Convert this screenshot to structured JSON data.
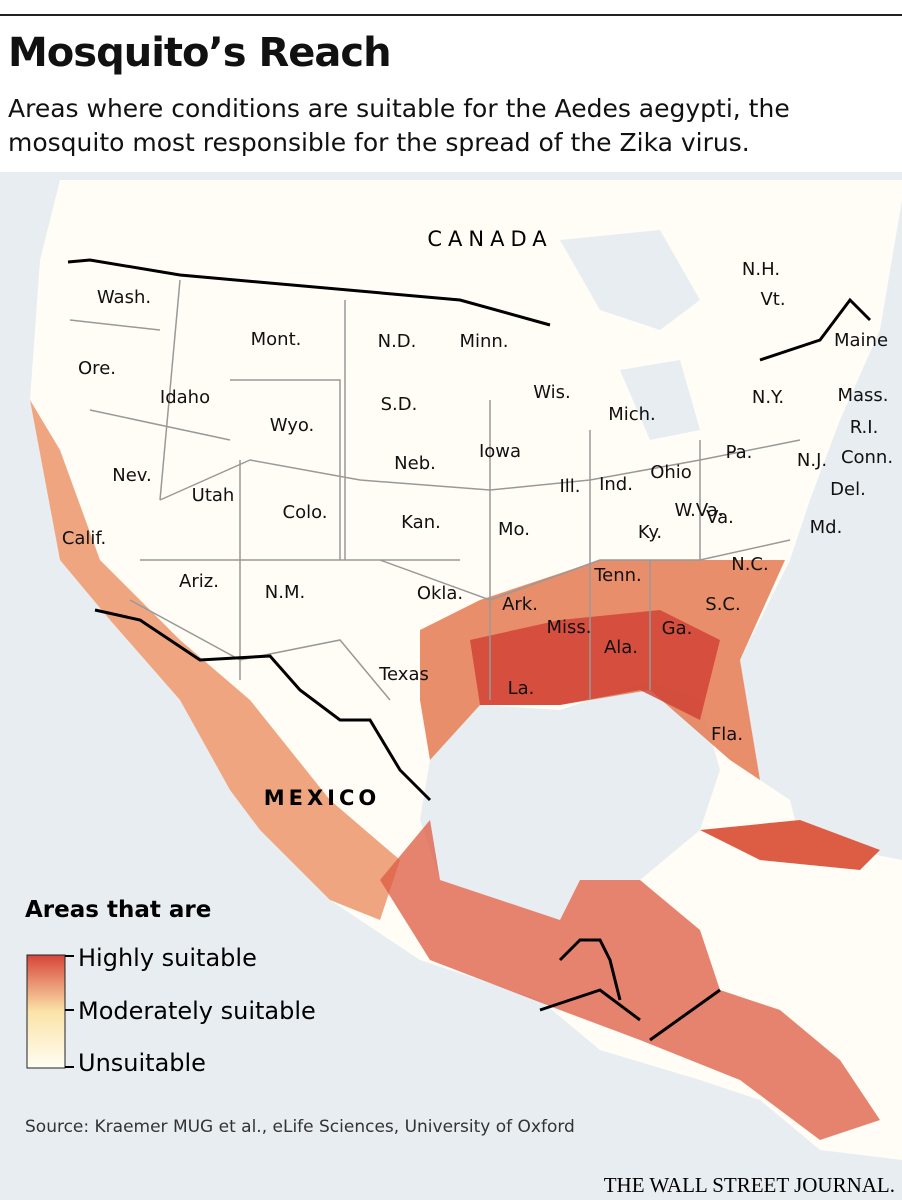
{
  "header": {
    "title": "Mosquito’s Reach",
    "subtitle_lines": [
      "Areas where conditions are suitable for the Aedes aegypti, the",
      "mosquito most responsible for the spread of the Zika virus."
    ]
  },
  "map": {
    "countries": [
      "CANADA",
      "MEXICO"
    ],
    "states": [
      "Wash.",
      "Ore.",
      "Calif.",
      "Idaho",
      "Nev.",
      "Mont.",
      "Wyo.",
      "Utah",
      "Ariz.",
      "Colo.",
      "N.M.",
      "N.D.",
      "S.D.",
      "Neb.",
      "Kan.",
      "Okla.",
      "Texas",
      "Minn.",
      "Iowa",
      "Mo.",
      "Ark.",
      "La.",
      "Wis.",
      "Ill.",
      "Mich.",
      "Ind.",
      "Ohio",
      "Ky.",
      "Tenn.",
      "Miss.",
      "Ala.",
      "Ga.",
      "Fla.",
      "S.C.",
      "N.C.",
      "Va.",
      "W.Va.",
      "Pa.",
      "N.Y.",
      "Md.",
      "Del.",
      "N.J.",
      "Conn.",
      "R.I.",
      "Mass.",
      "Maine",
      "N.H.",
      "Vt."
    ]
  },
  "legend": {
    "title": "Areas that are",
    "labels": [
      "Highly suitable",
      "Moderately suitable",
      "Unsuitable"
    ]
  },
  "footer": {
    "source": "Source: Kraemer MUG et al., eLife Sciences, University of Oxford",
    "credit": "THE WALL STREET JOURNAL."
  }
}
